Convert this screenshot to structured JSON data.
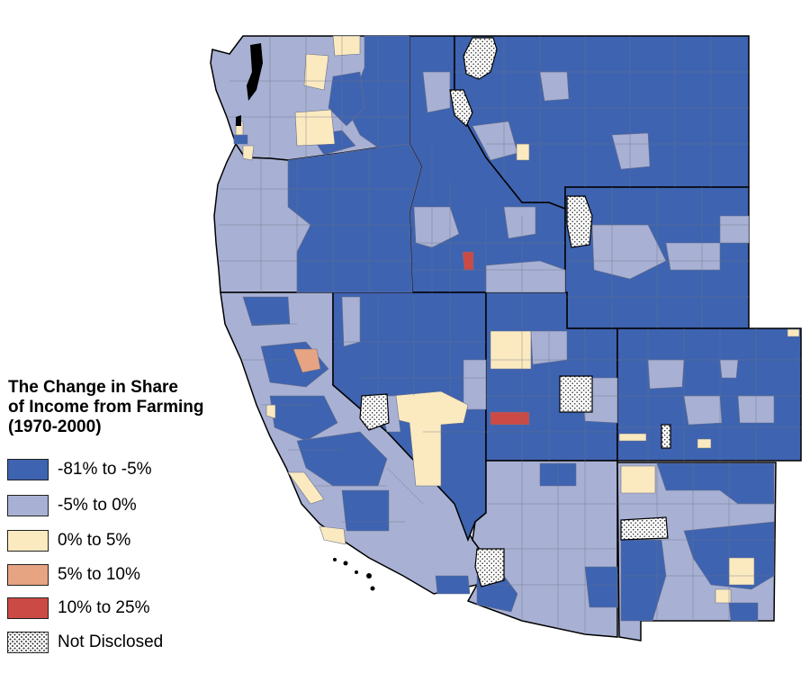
{
  "legend": {
    "title": "The Change in Share\nof Income from Farming\n(1970-2000)",
    "items": [
      {
        "label": "-81% to -5%",
        "color": "#3e63b0",
        "pattern": false
      },
      {
        "label": "-5% to 0%",
        "color": "#a8b1d4",
        "pattern": false
      },
      {
        "label": "0% to 5%",
        "color": "#fbeac0",
        "pattern": false
      },
      {
        "label": "5% to 10%",
        "color": "#e6a483",
        "pattern": false
      },
      {
        "label": "10% to 25%",
        "color": "#cc4a45",
        "pattern": false
      },
      {
        "label": "Not Disclosed",
        "color": "#ffffff",
        "pattern": true
      }
    ]
  },
  "colors": {
    "state_border": "#000000",
    "county_line": "#6b7088",
    "background": "#ffffff"
  }
}
